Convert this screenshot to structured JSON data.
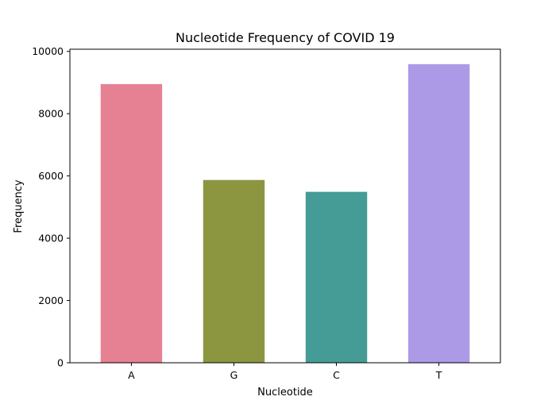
{
  "chart_data": {
    "type": "bar",
    "title": "Nucleotide Frequency of COVID 19",
    "xlabel": "Nucleotide",
    "ylabel": "Frequency",
    "categories": [
      "A",
      "G",
      "C",
      "T"
    ],
    "values": [
      8950,
      5870,
      5490,
      9590
    ],
    "colors": [
      "#e68193",
      "#8c9641",
      "#459c96",
      "#ad9ae7"
    ],
    "ylim": [
      0,
      10070
    ],
    "yticks": [
      0,
      2000,
      4000,
      6000,
      8000,
      10000
    ],
    "grid": false,
    "legend": "none"
  }
}
